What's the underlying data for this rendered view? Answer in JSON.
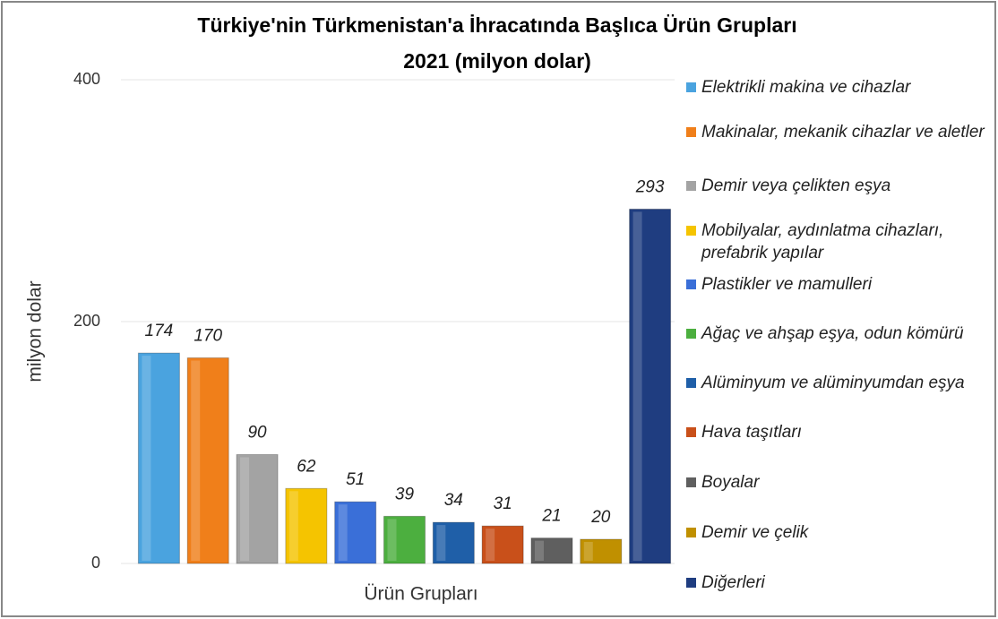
{
  "chart_data": {
    "type": "bar",
    "title": "Türkiye'nin Türkmenistan'a İhracatında Başlıca Ürün Grupları",
    "subtitle": "2021 (milyon dolar)",
    "x_label": "Ürün Grupları",
    "y_label": "milyon dolar",
    "categories": [
      "Elektrikli makina ve cihazlar",
      "Makinalar, mekanik cihazlar ve aletler",
      "Demir veya çelikten eşya",
      "Mobilyalar, aydınlatma cihazları, prefabrik yapılar",
      "Plastikler ve mamulleri",
      "Ağaç ve ahşap eşya, odun kömürü",
      "Alüminyum ve alüminyumdan eşya",
      "Hava taşıtları",
      "Boyalar",
      "Demir ve çelik",
      "Diğerleri"
    ],
    "values": [
      174,
      170,
      90,
      62,
      51,
      39,
      34,
      31,
      21,
      20,
      293
    ],
    "colors": [
      "#4aa3df",
      "#f07f1a",
      "#a3a3a3",
      "#f5c400",
      "#3a6fd8",
      "#4caf3f",
      "#1f5fa8",
      "#c9501a",
      "#5f5f5f",
      "#c09000",
      "#1f3d80"
    ],
    "ylim": [
      0,
      400
    ],
    "yticks": [
      0,
      200,
      400
    ],
    "grid": true,
    "legend": "right"
  }
}
